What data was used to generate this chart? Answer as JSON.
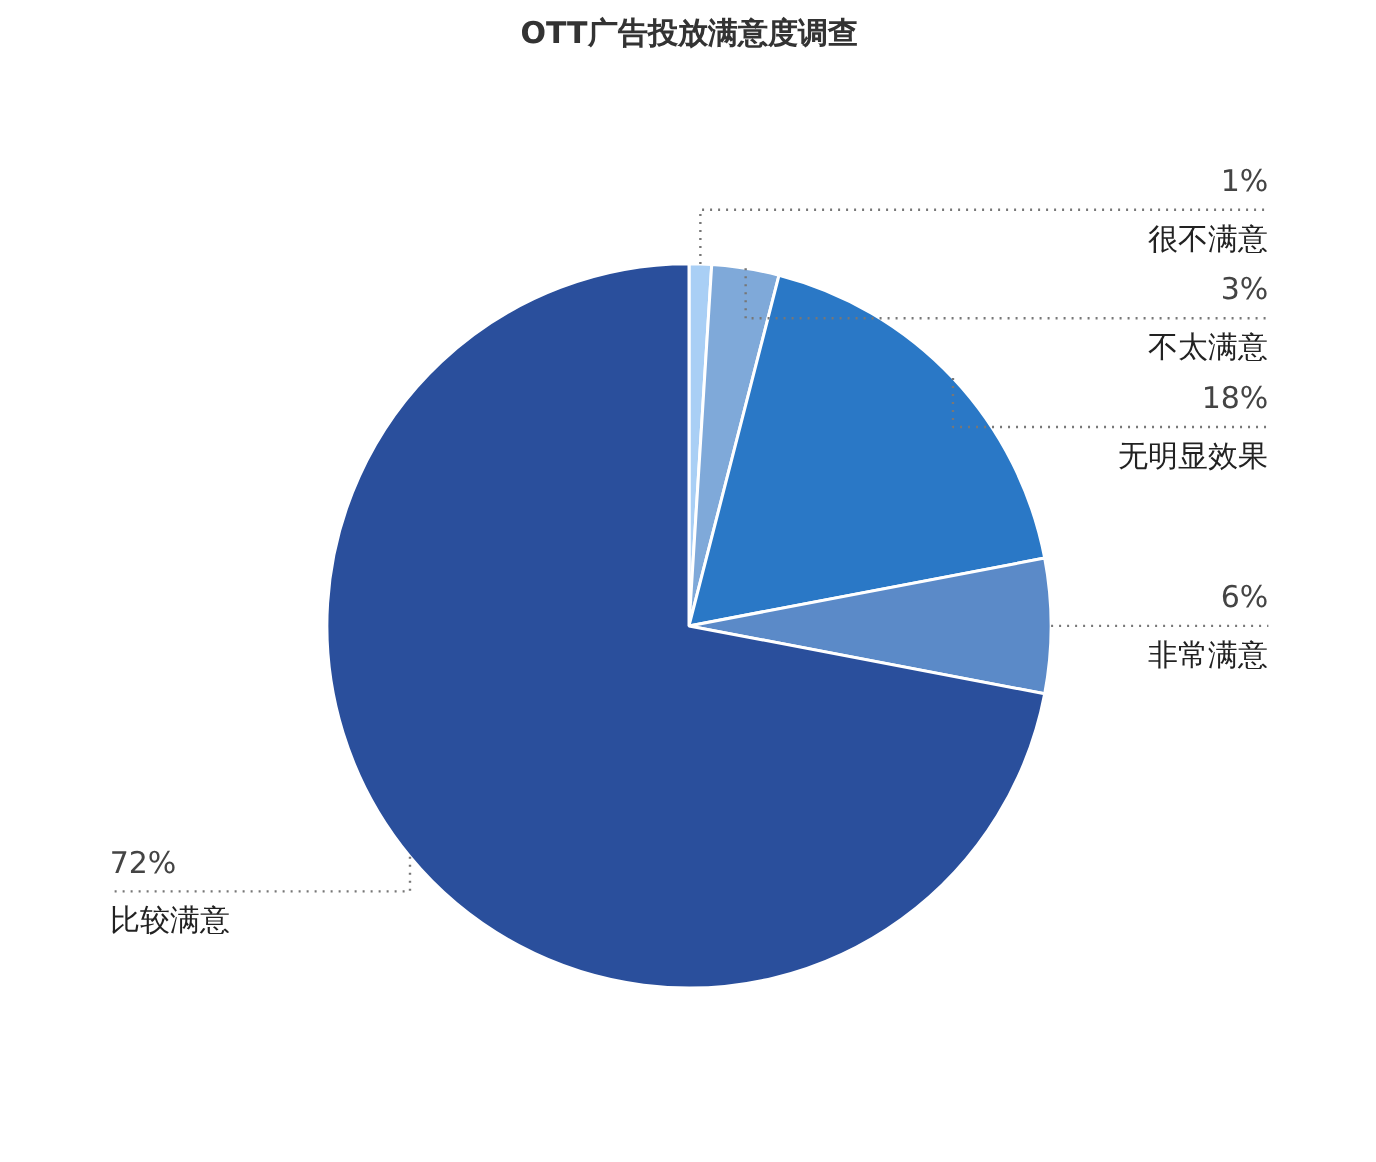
{
  "chart_data": {
    "type": "pie",
    "title": "OTT广告投放满意度调查",
    "categories": [
      "很不满意",
      "不太满意",
      "无明显效果",
      "非常满意",
      "比较满意"
    ],
    "values": [
      1,
      3,
      18,
      6,
      72
    ],
    "value_labels": [
      "1%",
      "3%",
      "18%",
      "6%",
      "72%"
    ],
    "colors": [
      "#a9cff5",
      "#7fa9d9",
      "#2a78c6",
      "#5b8ac8",
      "#2a4f9c"
    ],
    "legend": false
  }
}
